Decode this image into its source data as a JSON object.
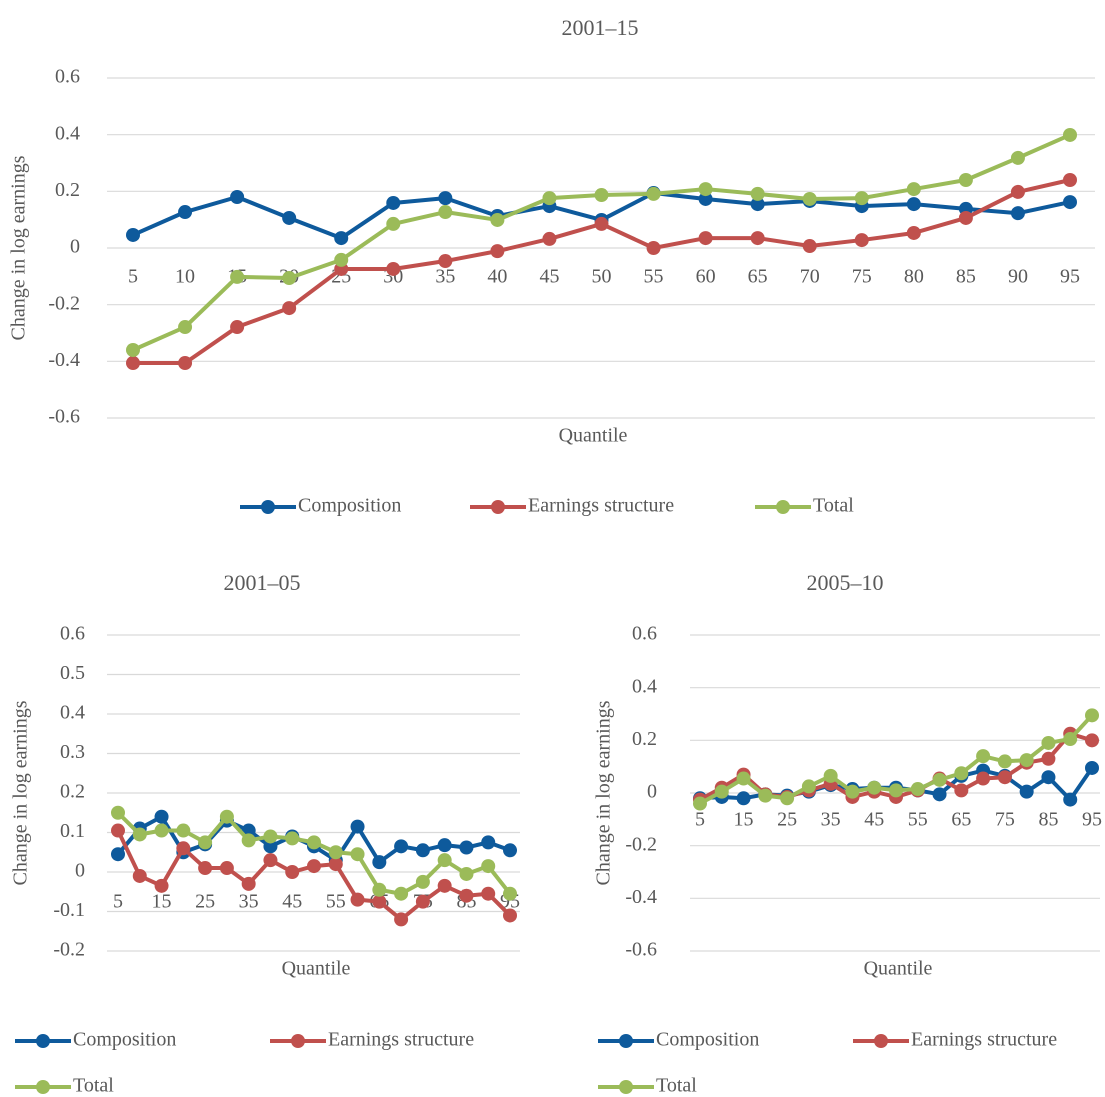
{
  "chart_data": [
    {
      "type": "line",
      "title": "2001–15",
      "xlabel": "Quantile",
      "ylabel": "Change in log earnings",
      "categories": [
        5,
        10,
        15,
        20,
        25,
        30,
        35,
        40,
        45,
        50,
        55,
        60,
        65,
        70,
        75,
        80,
        85,
        90,
        95
      ],
      "series": [
        {
          "name": "Composition",
          "color": "#0e5a9c",
          "values": [
            0.046,
            0.127,
            0.18,
            0.106,
            0.035,
            0.159,
            0.176,
            0.113,
            0.148,
            0.099,
            0.194,
            0.173,
            0.155,
            0.166,
            0.148,
            0.155,
            0.138,
            0.123,
            0.162
          ]
        },
        {
          "name": "Earnings structure",
          "color": "#c0504d",
          "values": [
            -0.406,
            -0.406,
            -0.279,
            -0.212,
            -0.074,
            -0.074,
            -0.046,
            -0.011,
            0.032,
            0.085,
            0,
            0.035,
            0.035,
            0.007,
            0.028,
            0.053,
            0.106,
            0.198,
            0.24
          ]
        },
        {
          "name": "Total",
          "color": "#9bbb59",
          "values": [
            -0.36,
            -0.279,
            -0.102,
            -0.106,
            -0.042,
            0.085,
            0.127,
            0.099,
            0.176,
            0.187,
            0.191,
            0.208,
            0.191,
            0.173,
            0.176,
            0.208,
            0.24,
            0.318,
            0.399
          ]
        }
      ],
      "ylim": [
        -0.6,
        0.6
      ],
      "yticks": [
        -0.6,
        -0.4,
        -0.2,
        0,
        0.2,
        0.4,
        0.6
      ],
      "grid": true
    },
    {
      "type": "line",
      "title": "2001–05",
      "xlabel": "Quantile",
      "ylabel": "Change in log earnings",
      "categories": [
        5,
        null,
        15,
        null,
        25,
        null,
        35,
        null,
        45,
        null,
        55,
        null,
        65,
        null,
        75,
        null,
        85,
        null,
        95
      ],
      "series": [
        {
          "name": "Composition",
          "color": "#0e5a9c",
          "values": [
            0.045,
            0.11,
            0.14,
            0.05,
            0.07,
            0.13,
            0.105,
            0.065,
            0.09,
            0.065,
            0.03,
            0.115,
            0.025,
            0.065,
            0.055,
            0.068,
            0.062,
            0.075,
            0.055
          ]
        },
        {
          "name": "Earnings structure",
          "color": "#c0504d",
          "values": [
            0.105,
            -0.01,
            -0.035,
            0.06,
            0.01,
            0.01,
            -0.03,
            0.03,
            0,
            0.015,
            0.02,
            -0.07,
            -0.075,
            -0.12,
            -0.075,
            -0.035,
            -0.06,
            -0.055,
            -0.11
          ]
        },
        {
          "name": "Total",
          "color": "#9bbb59",
          "values": [
            0.15,
            0.095,
            0.105,
            0.105,
            0.075,
            0.14,
            0.08,
            0.09,
            0.085,
            0.075,
            0.05,
            0.045,
            -0.045,
            -0.055,
            -0.025,
            0.03,
            -0.005,
            0.015,
            -0.055
          ]
        }
      ],
      "ylim": [
        -0.2,
        0.6
      ],
      "yticks": [
        -0.2,
        -0.1,
        0,
        0.1,
        0.2,
        0.3,
        0.4,
        0.5,
        0.6
      ],
      "grid": true
    },
    {
      "type": "line",
      "title": "2005–10",
      "xlabel": "Quantile",
      "ylabel": "Change in log earnings",
      "categories": [
        5,
        null,
        15,
        null,
        25,
        null,
        35,
        null,
        45,
        null,
        55,
        null,
        65,
        null,
        75,
        null,
        85,
        null,
        95
      ],
      "series": [
        {
          "name": "Composition",
          "color": "#0e5a9c",
          "values": [
            -0.02,
            -0.015,
            -0.02,
            -0.005,
            -0.01,
            0.005,
            0.03,
            0.015,
            0.02,
            0.02,
            0.01,
            -0.005,
            0.065,
            0.085,
            0.065,
            0.005,
            0.06,
            -0.025,
            0.095
          ]
        },
        {
          "name": "Earnings structure",
          "color": "#c0504d",
          "values": [
            -0.025,
            0.02,
            0.07,
            -0.005,
            -0.015,
            0.01,
            0.035,
            -0.015,
            0.005,
            -0.015,
            0.01,
            0.055,
            0.01,
            0.055,
            0.06,
            0.115,
            0.13,
            0.225,
            0.2
          ]
        },
        {
          "name": "Total",
          "color": "#9bbb59",
          "values": [
            -0.04,
            0.005,
            0.055,
            -0.01,
            -0.02,
            0.025,
            0.065,
            0.005,
            0.02,
            0.01,
            0.015,
            0.05,
            0.075,
            0.14,
            0.12,
            0.125,
            0.19,
            0.205,
            0.295
          ]
        }
      ],
      "ylim": [
        -0.6,
        0.6
      ],
      "yticks": [
        -0.6,
        -0.4,
        -0.2,
        0,
        0.2,
        0.4,
        0.6
      ],
      "grid": true
    }
  ]
}
